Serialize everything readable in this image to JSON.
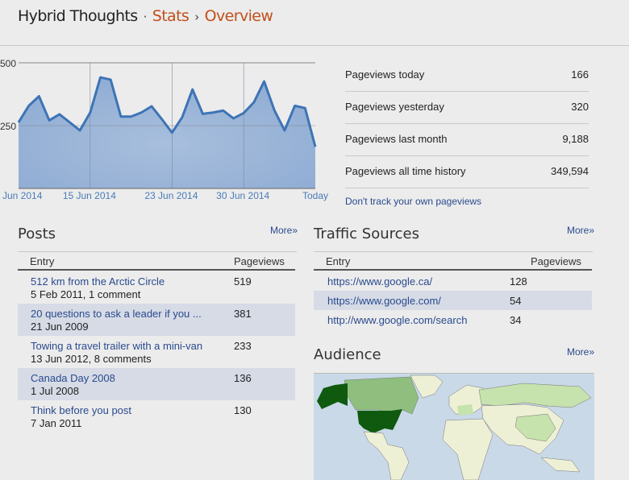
{
  "header": {
    "blog": "Hybrid Thoughts",
    "sep1": "·",
    "stats": "Stats",
    "sep2": "›",
    "page": "Overview"
  },
  "chart_data": {
    "type": "area",
    "x": [
      "8 Jun 2014",
      "9 Jun 2014",
      "10 Jun 2014",
      "11 Jun 2014",
      "12 Jun 2014",
      "13 Jun 2014",
      "14 Jun 2014",
      "15 Jun 2014",
      "16 Jun 2014",
      "17 Jun 2014",
      "18 Jun 2014",
      "19 Jun 2014",
      "20 Jun 2014",
      "21 Jun 2014",
      "22 Jun 2014",
      "23 Jun 2014",
      "24 Jun 2014",
      "25 Jun 2014",
      "26 Jun 2014",
      "27 Jun 2014",
      "28 Jun 2014",
      "29 Jun 2014",
      "30 Jun 2014",
      "1 Jul 2014",
      "2 Jul 2014",
      "3 Jul 2014",
      "4 Jul 2014",
      "5 Jul 2014",
      "6 Jul 2014",
      "Today"
    ],
    "values": [
      263,
      329,
      367,
      271,
      295,
      263,
      231,
      302,
      442,
      433,
      286,
      286,
      302,
      327,
      276,
      222,
      284,
      394,
      297,
      302,
      310,
      279,
      300,
      343,
      426,
      311,
      231,
      329,
      320,
      166
    ],
    "yticks": [
      "250",
      "500"
    ],
    "ylim": [
      0,
      500
    ],
    "xticks": [
      {
        "label": "Jun 2014",
        "i": 0
      },
      {
        "label": "15 Jun 2014",
        "i": 7
      },
      {
        "label": "23 Jun 2014",
        "i": 15
      },
      {
        "label": "30 Jun 2014",
        "i": 22
      },
      {
        "label": "Today",
        "i": 29
      }
    ],
    "grid": true,
    "colors": {
      "line": "#3d74b5",
      "fill": "#9db6d9"
    }
  },
  "summary": [
    {
      "label": "Pageviews today",
      "value": "166"
    },
    {
      "label": "Pageviews yesterday",
      "value": "320"
    },
    {
      "label": "Pageviews last month",
      "value": "9,188"
    },
    {
      "label": "Pageviews all time history",
      "value": "349,594"
    }
  ],
  "dont_track": "Don't track your own pageviews",
  "posts": {
    "title": "Posts",
    "more": "More»",
    "col_entry": "Entry",
    "col_views": "Pageviews",
    "rows": [
      {
        "title": "512 km from the Arctic Circle",
        "meta": "5 Feb 2011, 1 comment",
        "views": "519"
      },
      {
        "title": "20 questions to ask a leader if you ...",
        "meta": "21 Jun 2009",
        "views": "381"
      },
      {
        "title": "Towing a travel trailer with a mini-van",
        "meta": "13 Jun 2012, 8 comments",
        "views": "233"
      },
      {
        "title": "Canada Day 2008",
        "meta": "1 Jul 2008",
        "views": "136"
      },
      {
        "title": "Think before you post",
        "meta": "7 Jan 2011",
        "views": "130"
      }
    ]
  },
  "traffic": {
    "title": "Traffic Sources",
    "more": "More»",
    "col_entry": "Entry",
    "col_views": "Pageviews",
    "rows": [
      {
        "url": "https://www.google.ca/",
        "views": "128"
      },
      {
        "url": "https://www.google.com/",
        "views": "54"
      },
      {
        "url": "http://www.google.com/search",
        "views": "34"
      }
    ]
  },
  "audience": {
    "title": "Audience",
    "more": "More»",
    "colors": {
      "ocean": "#c9d9e8",
      "top": "#0f5a0f",
      "mid": "#8fbe7f",
      "low": "#c6e2ad",
      "none": "#eef0d6"
    }
  }
}
